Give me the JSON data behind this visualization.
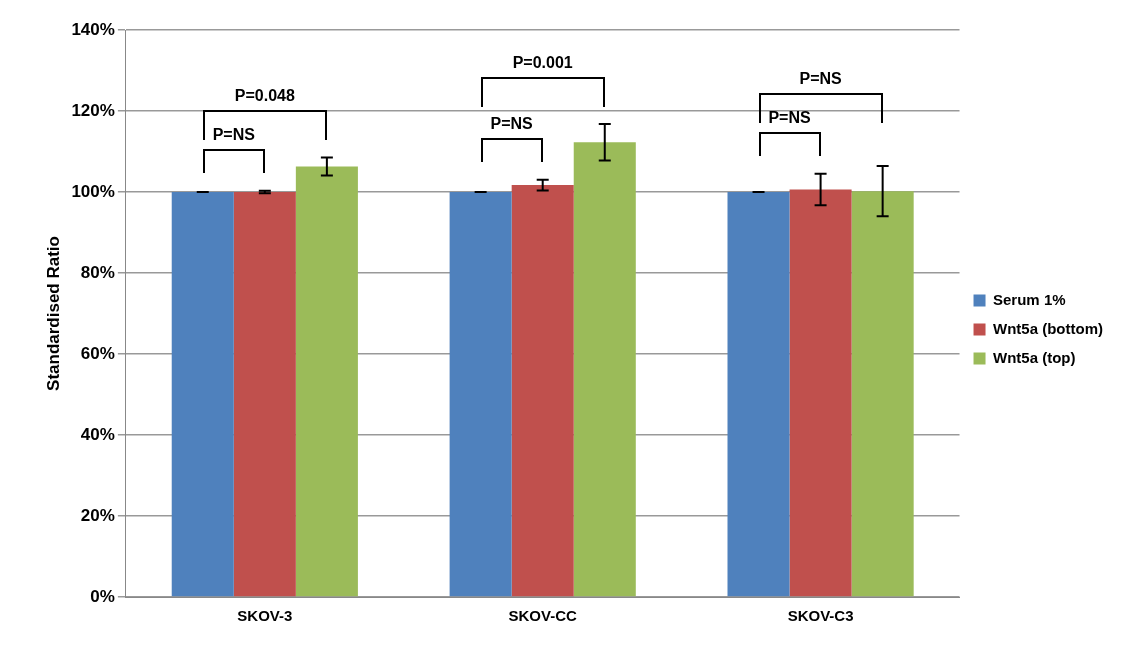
{
  "chart_data": {
    "type": "bar",
    "ylabel": "Standardised Ratio",
    "categories": [
      "SKOV-3",
      "SKOV-CC",
      "SKOV-C3"
    ],
    "series": [
      {
        "name": "Serum 1%",
        "color": "#4f81bd",
        "values": [
          100,
          100,
          100
        ],
        "errors": [
          0,
          0,
          0
        ]
      },
      {
        "name": "Wnt5a (bottom)",
        "color": "#c0504d",
        "values": [
          100,
          101.7,
          100.6
        ],
        "errors": [
          0.3,
          1.3,
          3.9
        ]
      },
      {
        "name": "Wnt5a (top)",
        "color": "#9bbb59",
        "values": [
          106.3,
          112.3,
          100.2
        ],
        "errors": [
          2.2,
          4.5,
          6.2
        ]
      }
    ],
    "ylim": [
      0,
      140
    ],
    "yticks": [
      {
        "value": 0,
        "label": "0%"
      },
      {
        "value": 20,
        "label": "20%"
      },
      {
        "value": 40,
        "label": "40%"
      },
      {
        "value": 60,
        "label": "60%"
      },
      {
        "value": 80,
        "label": "80%"
      },
      {
        "value": 100,
        "label": "100%"
      },
      {
        "value": 120,
        "label": "120%"
      },
      {
        "value": 140,
        "label": "140%"
      }
    ],
    "grid": "y",
    "legend": "right",
    "annotations": [
      "P=0.048",
      "P=NS",
      "P=0.001",
      "P=NS",
      "P=NS",
      "P=NS"
    ]
  }
}
